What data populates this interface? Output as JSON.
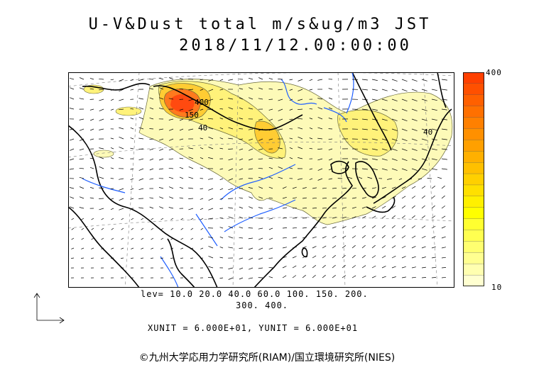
{
  "title": {
    "line1": "U-V&Dust total m/s&ug/m3 JST",
    "line2": "2018/11/12.00:00:00"
  },
  "legend": {
    "max_label": "400",
    "min_label": "10",
    "colors": [
      "#ffffd0",
      "#ffffb0",
      "#ffff90",
      "#ffff70",
      "#ffff50",
      "#ffff30",
      "#ffff00",
      "#fff000",
      "#ffe000",
      "#ffd000",
      "#ffc000",
      "#ffb000",
      "#ffa000",
      "#ff9000",
      "#ff8000",
      "#ff7000",
      "#ff6000",
      "#ff5000",
      "#ff4000"
    ]
  },
  "contour_labels": [
    "150",
    "400",
    "40",
    "40"
  ],
  "levels": {
    "line1": "lev= 10.0 20.0 40.0 60.0 100. 150. 200.",
    "line2": "300. 400."
  },
  "units": "XUNIT = 6.000E+01, YUNIT = 6.000E+01",
  "copyright": "©九州大学応用力学研究所(RIAM)/国立環境研究所(NIES)",
  "colors": {
    "coast": "#000000",
    "river": "#1f5fff",
    "grid": "#7a7a7a"
  }
}
